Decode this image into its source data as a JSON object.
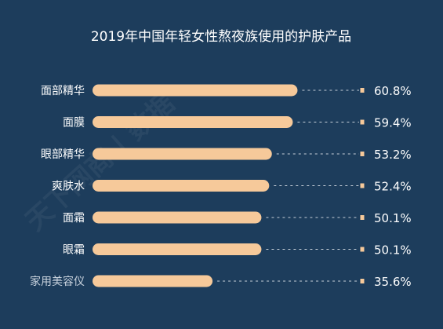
{
  "chart_data": {
    "type": "bar",
    "orientation": "horizontal",
    "title": "2019年中国年轻女性熬夜族使用的护肤产品",
    "categories": [
      "面部精华",
      "面膜",
      "眼部精华",
      "爽肤水",
      "面霜",
      "眼霜",
      "家用美容仪"
    ],
    "values": [
      60.8,
      59.4,
      53.2,
      52.4,
      50.1,
      50.1,
      35.6
    ],
    "value_labels": [
      "60.8%",
      "59.4%",
      "53.2%",
      "52.4%",
      "50.1%",
      "50.1%",
      "35.6%"
    ],
    "xlim": [
      0,
      100
    ],
    "grid": false,
    "legend": "none",
    "colors": {
      "background": "#1d3d5c",
      "bar": "#f6c99a",
      "text": "#ffffff",
      "muted_text": "#c9d3de",
      "dash": "#c7d0d9",
      "end_marker": "#f6c99a"
    }
  },
  "watermark": "天下网商 | 数据"
}
